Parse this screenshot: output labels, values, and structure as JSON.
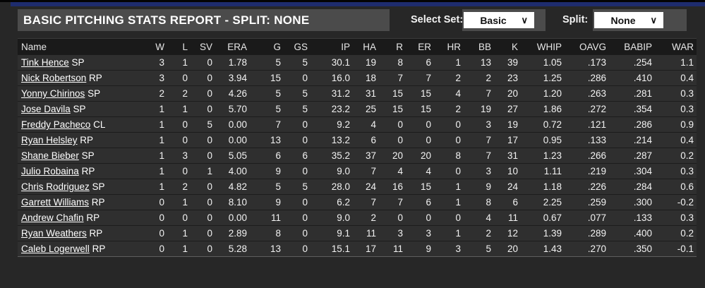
{
  "title_bar": {
    "title": "BASIC PITCHING STATS REPORT - SPLIT: NONE"
  },
  "controls": {
    "select_set_label": "Select Set:",
    "select_set_value": "Basic",
    "split_label": "Split:",
    "split_value": "None",
    "chevron_glyph": "∨"
  },
  "colors": {
    "top_strip": "#1e2c6e",
    "title_bar_bg": "#4b4b4b",
    "page_bg": "#272727",
    "header_row_bg": "#1a1a1a",
    "row_bg": "#2f2f2f",
    "dropdown_bg": "#ffffff"
  },
  "table": {
    "columns": [
      "Name",
      "W",
      "L",
      "SV",
      "ERA",
      "G",
      "GS",
      "IP",
      "HA",
      "R",
      "ER",
      "HR",
      "BB",
      "K",
      "WHIP",
      "OAVG",
      "BABIP",
      "WAR"
    ],
    "rows": [
      {
        "name": "Tink Hence",
        "pos": "SP",
        "stats": [
          "3",
          "1",
          "0",
          "1.78",
          "5",
          "5",
          "30.1",
          "19",
          "8",
          "6",
          "1",
          "13",
          "39",
          "1.05",
          ".173",
          ".254",
          "1.1"
        ]
      },
      {
        "name": "Nick Robertson",
        "pos": "RP",
        "stats": [
          "3",
          "0",
          "0",
          "3.94",
          "15",
          "0",
          "16.0",
          "18",
          "7",
          "7",
          "2",
          "2",
          "23",
          "1.25",
          ".286",
          ".410",
          "0.4"
        ]
      },
      {
        "name": "Yonny Chirinos",
        "pos": "SP",
        "stats": [
          "2",
          "2",
          "0",
          "4.26",
          "5",
          "5",
          "31.2",
          "31",
          "15",
          "15",
          "4",
          "7",
          "20",
          "1.20",
          ".263",
          ".281",
          "0.3"
        ]
      },
      {
        "name": "Jose Davila",
        "pos": "SP",
        "stats": [
          "1",
          "1",
          "0",
          "5.70",
          "5",
          "5",
          "23.2",
          "25",
          "15",
          "15",
          "2",
          "19",
          "27",
          "1.86",
          ".272",
          ".354",
          "0.3"
        ]
      },
      {
        "name": "Freddy Pacheco",
        "pos": "CL",
        "stats": [
          "1",
          "0",
          "5",
          "0.00",
          "7",
          "0",
          "9.2",
          "4",
          "0",
          "0",
          "0",
          "3",
          "19",
          "0.72",
          ".121",
          ".286",
          "0.9"
        ]
      },
      {
        "name": "Ryan Helsley",
        "pos": "RP",
        "stats": [
          "1",
          "0",
          "0",
          "0.00",
          "13",
          "0",
          "13.2",
          "6",
          "0",
          "0",
          "0",
          "7",
          "17",
          "0.95",
          ".133",
          ".214",
          "0.4"
        ]
      },
      {
        "name": "Shane Bieber",
        "pos": "SP",
        "stats": [
          "1",
          "3",
          "0",
          "5.05",
          "6",
          "6",
          "35.2",
          "37",
          "20",
          "20",
          "8",
          "7",
          "31",
          "1.23",
          ".266",
          ".287",
          "0.2"
        ]
      },
      {
        "name": "Julio Robaina",
        "pos": "RP",
        "stats": [
          "1",
          "0",
          "1",
          "4.00",
          "9",
          "0",
          "9.0",
          "7",
          "4",
          "4",
          "0",
          "3",
          "10",
          "1.11",
          ".219",
          ".304",
          "0.3"
        ]
      },
      {
        "name": "Chris Rodriguez",
        "pos": "SP",
        "stats": [
          "1",
          "2",
          "0",
          "4.82",
          "5",
          "5",
          "28.0",
          "24",
          "16",
          "15",
          "1",
          "9",
          "24",
          "1.18",
          ".226",
          ".284",
          "0.6"
        ]
      },
      {
        "name": "Garrett Williams",
        "pos": "RP",
        "stats": [
          "0",
          "1",
          "0",
          "8.10",
          "9",
          "0",
          "6.2",
          "7",
          "7",
          "6",
          "1",
          "8",
          "6",
          "2.25",
          ".259",
          ".300",
          "-0.2"
        ]
      },
      {
        "name": "Andrew Chafin",
        "pos": "RP",
        "stats": [
          "0",
          "0",
          "0",
          "0.00",
          "11",
          "0",
          "9.0",
          "2",
          "0",
          "0",
          "0",
          "4",
          "11",
          "0.67",
          ".077",
          ".133",
          "0.3"
        ]
      },
      {
        "name": "Ryan Weathers",
        "pos": "RP",
        "stats": [
          "0",
          "1",
          "0",
          "2.89",
          "8",
          "0",
          "9.1",
          "11",
          "3",
          "3",
          "1",
          "2",
          "12",
          "1.39",
          ".289",
          ".400",
          "0.2"
        ]
      },
      {
        "name": "Caleb Logerwell",
        "pos": "RP",
        "stats": [
          "0",
          "1",
          "0",
          "5.28",
          "13",
          "0",
          "15.1",
          "17",
          "11",
          "9",
          "3",
          "5",
          "20",
          "1.43",
          ".270",
          ".350",
          "-0.1"
        ]
      }
    ]
  }
}
